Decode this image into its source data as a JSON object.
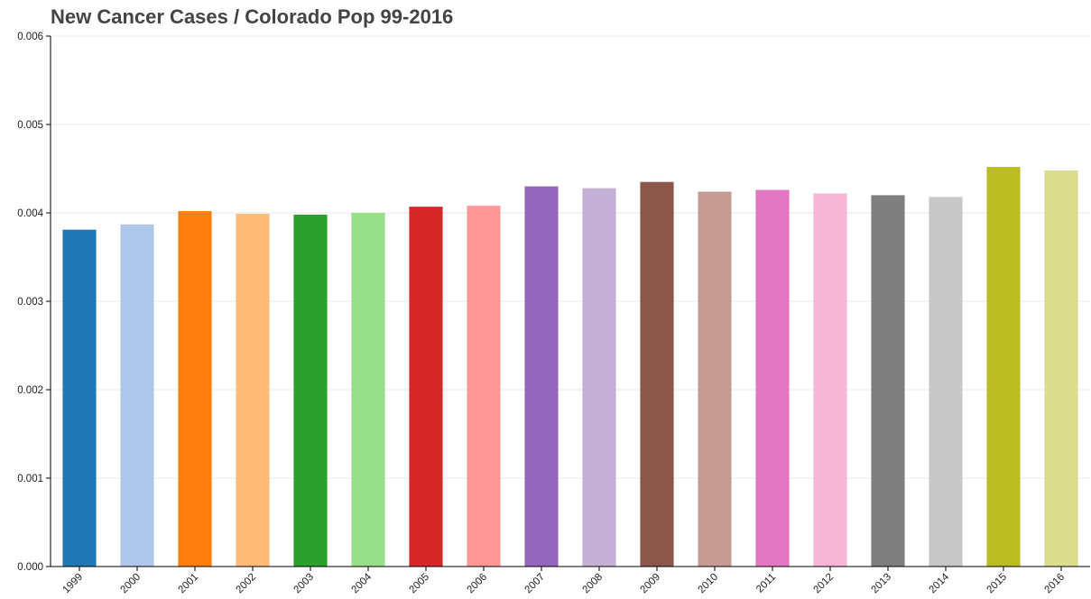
{
  "chart_data": {
    "type": "bar",
    "title": "New Cancer Cases / Colorado Pop 99-2016",
    "xlabel": "",
    "ylabel": "",
    "ylim": [
      0,
      0.006
    ],
    "yticks": [
      "0.000",
      "0.001",
      "0.002",
      "0.003",
      "0.004",
      "0.005",
      "0.006"
    ],
    "grid": true,
    "legend": "none",
    "categories": [
      "1999",
      "2000",
      "2001",
      "2002",
      "2003",
      "2004",
      "2005",
      "2006",
      "2007",
      "2008",
      "2009",
      "2010",
      "2011",
      "2012",
      "2013",
      "2014",
      "2015",
      "2016"
    ],
    "values": [
      0.00381,
      0.00387,
      0.00402,
      0.00399,
      0.00398,
      0.004,
      0.00407,
      0.00408,
      0.0043,
      0.00428,
      0.00435,
      0.00424,
      0.00426,
      0.00422,
      0.0042,
      0.00418,
      0.00452,
      0.00448
    ],
    "colors": [
      "#1f77b4",
      "#aec7e8",
      "#ff7f0e",
      "#ffbb78",
      "#2ca02c",
      "#98df8a",
      "#d62728",
      "#ff9896",
      "#9467bd",
      "#c5b0d5",
      "#8c564b",
      "#c49c94",
      "#e377c2",
      "#f7b6d2",
      "#7f7f7f",
      "#c7c7c7",
      "#bcbd22",
      "#dbdb8d"
    ]
  }
}
